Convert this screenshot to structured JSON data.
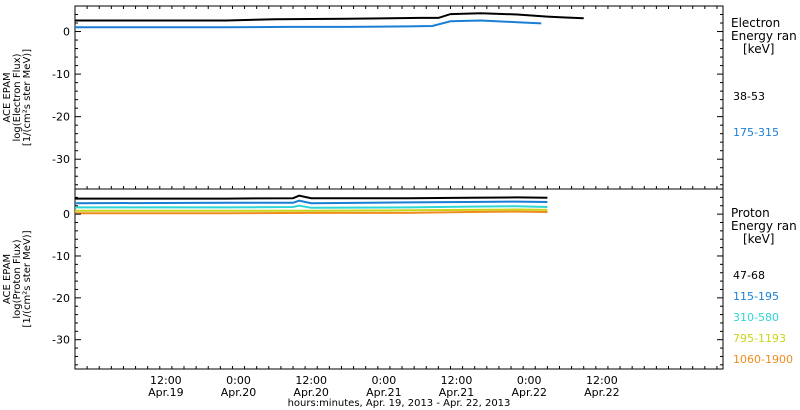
{
  "chart_data": {
    "type": "line",
    "x_axis": {
      "title": "hours:minutes, Apr. 19, 2013 - Apr. 22, 2013",
      "range_hours": [
        -15,
        92
      ],
      "ticks": [
        {
          "hours": 0,
          "time": "12:00",
          "date": "Apr.19"
        },
        {
          "hours": 12,
          "time": "0:00",
          "date": "Apr.20"
        },
        {
          "hours": 24,
          "time": "12:00",
          "date": "Apr.20"
        },
        {
          "hours": 36,
          "time": "0:00",
          "date": "Apr.21"
        },
        {
          "hours": 48,
          "time": "12:00",
          "date": "Apr.21"
        },
        {
          "hours": 60,
          "time": "0:00",
          "date": "Apr.22"
        },
        {
          "hours": 72,
          "time": "12:00",
          "date": "Apr.22"
        }
      ]
    },
    "panels": [
      {
        "id": "electron",
        "ylabel": [
          "ACE EPAM",
          "log(Electron Flux)",
          "[1/(cm²s ster MeV)]"
        ],
        "ylim": [
          -37,
          6
        ],
        "yticks": [
          0,
          -10,
          -20,
          -30
        ],
        "legend_title": [
          "Electron",
          "Energy ran",
          "[keV]"
        ],
        "series": [
          {
            "name": "38-53",
            "color": "#000000",
            "values": [
              [
                -15,
                2.6
              ],
              [
                0,
                2.6
              ],
              [
                10,
                2.6
              ],
              [
                18,
                2.9
              ],
              [
                30,
                3.0
              ],
              [
                42,
                3.2
              ],
              [
                45,
                3.2
              ],
              [
                47,
                4.1
              ],
              [
                52,
                4.3
              ],
              [
                58,
                4.0
              ],
              [
                63,
                3.5
              ],
              [
                66,
                3.3
              ],
              [
                69,
                3.1
              ]
            ]
          },
          {
            "name": "175-315",
            "color": "#1a7fd4",
            "values": [
              [
                -15,
                1.0
              ],
              [
                0,
                1.0
              ],
              [
                10,
                1.0
              ],
              [
                20,
                1.1
              ],
              [
                30,
                1.1
              ],
              [
                40,
                1.2
              ],
              [
                44,
                1.3
              ],
              [
                47,
                2.4
              ],
              [
                52,
                2.6
              ],
              [
                58,
                2.2
              ],
              [
                62,
                1.9
              ]
            ]
          }
        ]
      },
      {
        "id": "proton",
        "ylabel": [
          "ACE EPAM",
          "log(Proton Flux)",
          "[1/(cm²s ster MeV)]"
        ],
        "ylim": [
          -37,
          6
        ],
        "yticks": [
          0,
          -10,
          -20,
          -30
        ],
        "legend_title": [
          "Proton",
          "Energy ran",
          "[keV]"
        ],
        "series": [
          {
            "name": "47-68",
            "color": "#000000",
            "values": [
              [
                -15,
                3.7
              ],
              [
                10,
                3.7
              ],
              [
                21,
                3.8
              ],
              [
                22,
                4.4
              ],
              [
                24,
                3.8
              ],
              [
                40,
                3.8
              ],
              [
                50,
                3.9
              ],
              [
                58,
                4.0
              ],
              [
                63,
                3.9
              ]
            ]
          },
          {
            "name": "115-195",
            "color": "#1a7fd4",
            "values": [
              [
                -15,
                2.6
              ],
              [
                10,
                2.7
              ],
              [
                21,
                2.7
              ],
              [
                22,
                3.2
              ],
              [
                24,
                2.6
              ],
              [
                40,
                2.8
              ],
              [
                50,
                2.9
              ],
              [
                58,
                3.0
              ],
              [
                63,
                2.9
              ]
            ]
          },
          {
            "name": "310-580",
            "color": "#2fd6d6",
            "values": [
              [
                -15,
                1.6
              ],
              [
                10,
                1.6
              ],
              [
                21,
                1.7
              ],
              [
                22,
                2.0
              ],
              [
                24,
                1.5
              ],
              [
                40,
                1.6
              ],
              [
                50,
                1.8
              ],
              [
                58,
                1.9
              ],
              [
                63,
                1.7
              ]
            ]
          },
          {
            "name": "795-1193",
            "color": "#c9d419",
            "values": [
              [
                -15,
                0.8
              ],
              [
                10,
                0.8
              ],
              [
                24,
                0.8
              ],
              [
                40,
                0.9
              ],
              [
                50,
                1.0
              ],
              [
                58,
                1.1
              ],
              [
                63,
                1.0
              ]
            ]
          },
          {
            "name": "1060-1900",
            "color": "#f08c1e",
            "values": [
              [
                -15,
                0.2
              ],
              [
                10,
                0.2
              ],
              [
                24,
                0.3
              ],
              [
                40,
                0.3
              ],
              [
                50,
                0.5
              ],
              [
                58,
                0.6
              ],
              [
                63,
                0.5
              ]
            ]
          }
        ]
      }
    ],
    "grid": false
  }
}
